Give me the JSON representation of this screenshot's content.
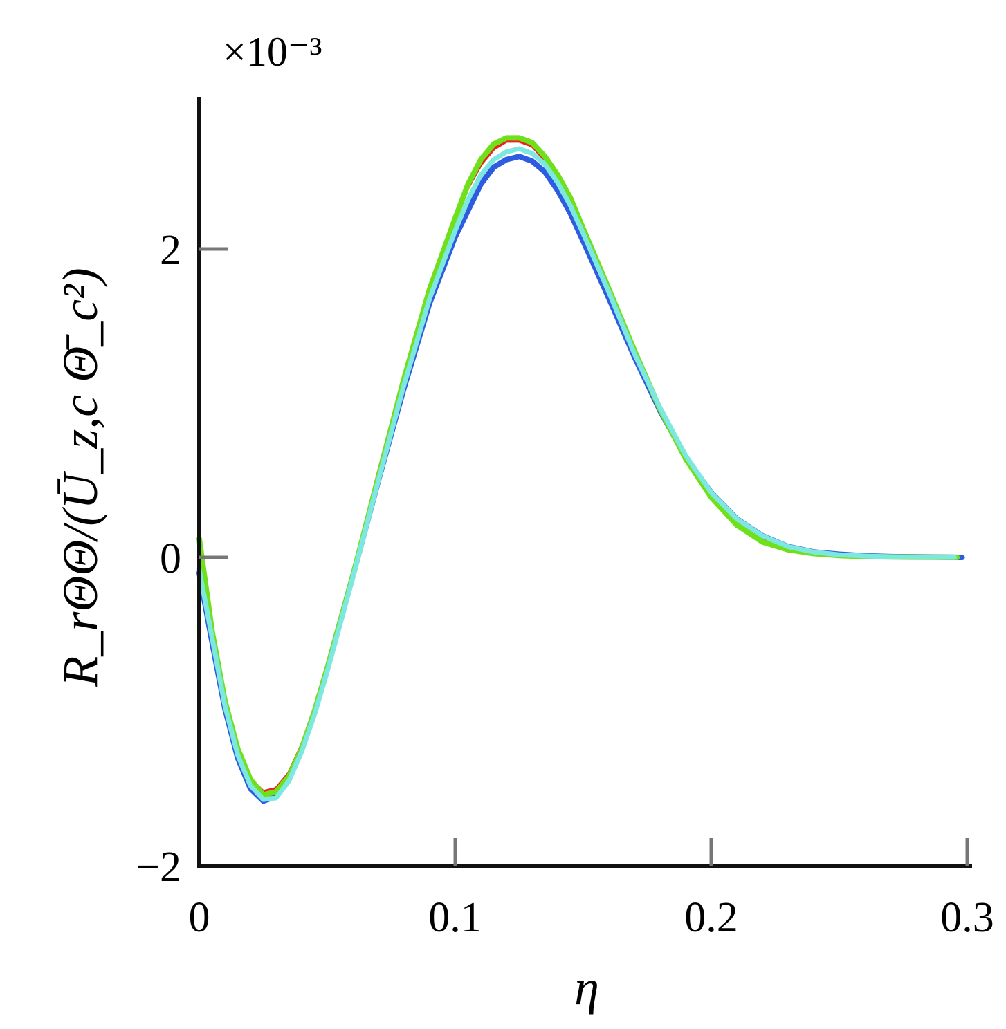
{
  "chart_data": {
    "type": "line",
    "title": "",
    "xlabel": "η",
    "ylabel": "R_rΘΘ/(Ū_z,c Θ̄_c²)",
    "y_multiplier": "×10⁻³",
    "xlim": [
      0,
      0.3
    ],
    "ylim": [
      -2,
      3
    ],
    "x_ticks": [
      0,
      0.1,
      0.2,
      0.3
    ],
    "x_tick_labels": [
      "0",
      "0.1",
      "0.2",
      "0.3"
    ],
    "y_ticks": [
      -2,
      0,
      2
    ],
    "y_tick_labels": [
      "−2",
      "0",
      "2"
    ],
    "grid": false,
    "legend": "none",
    "series": [
      {
        "color": "#2f5be0",
        "x": [
          0,
          0.005,
          0.01,
          0.015,
          0.02,
          0.025,
          0.03,
          0.035,
          0.04,
          0.045,
          0.05,
          0.06,
          0.07,
          0.08,
          0.09,
          0.1,
          0.105,
          0.11,
          0.115,
          0.12,
          0.125,
          0.13,
          0.135,
          0.14,
          0.145,
          0.15,
          0.16,
          0.17,
          0.18,
          0.19,
          0.2,
          0.21,
          0.22,
          0.23,
          0.24,
          0.25,
          0.26,
          0.27,
          0.28,
          0.29,
          0.298
        ],
        "y": [
          -0.1,
          -0.55,
          -0.98,
          -1.3,
          -1.5,
          -1.58,
          -1.55,
          -1.44,
          -1.25,
          -1.0,
          -0.72,
          -0.12,
          0.5,
          1.1,
          1.65,
          2.08,
          2.25,
          2.42,
          2.53,
          2.58,
          2.6,
          2.57,
          2.5,
          2.38,
          2.23,
          2.05,
          1.68,
          1.3,
          0.95,
          0.65,
          0.42,
          0.25,
          0.14,
          0.07,
          0.035,
          0.02,
          0.01,
          0.005,
          0.003,
          0.002,
          0.0
        ]
      },
      {
        "color": "#e8241b",
        "x": [
          0,
          0.005,
          0.01,
          0.015,
          0.02,
          0.025,
          0.03,
          0.035,
          0.04,
          0.045,
          0.05,
          0.06,
          0.07,
          0.08,
          0.09,
          0.1,
          0.105,
          0.11,
          0.115,
          0.12,
          0.125,
          0.13,
          0.135,
          0.14,
          0.145,
          0.15,
          0.16,
          0.17,
          0.18,
          0.19,
          0.2,
          0.21,
          0.22,
          0.23,
          0.24,
          0.25,
          0.26,
          0.27,
          0.28,
          0.29,
          0.296
        ],
        "y": [
          0.05,
          -0.5,
          -0.95,
          -1.25,
          -1.44,
          -1.52,
          -1.5,
          -1.4,
          -1.22,
          -0.98,
          -0.7,
          -0.1,
          0.55,
          1.18,
          1.75,
          2.2,
          2.4,
          2.55,
          2.65,
          2.7,
          2.7,
          2.67,
          2.58,
          2.45,
          2.3,
          2.1,
          1.72,
          1.32,
          0.95,
          0.64,
          0.4,
          0.23,
          0.12,
          0.06,
          0.03,
          0.015,
          0.008,
          0.004,
          0.002,
          0.001,
          0.0
        ]
      },
      {
        "color": "#6fe01a",
        "x": [
          0,
          0.005,
          0.01,
          0.015,
          0.02,
          0.025,
          0.03,
          0.035,
          0.04,
          0.045,
          0.05,
          0.06,
          0.07,
          0.08,
          0.09,
          0.1,
          0.105,
          0.11,
          0.115,
          0.12,
          0.125,
          0.13,
          0.135,
          0.14,
          0.145,
          0.15,
          0.16,
          0.17,
          0.18,
          0.19,
          0.2,
          0.21,
          0.22,
          0.23,
          0.24,
          0.25,
          0.26,
          0.27,
          0.28,
          0.29,
          0.296
        ],
        "y": [
          0.12,
          -0.48,
          -0.93,
          -1.24,
          -1.44,
          -1.54,
          -1.52,
          -1.42,
          -1.24,
          -1.0,
          -0.72,
          -0.12,
          0.52,
          1.16,
          1.74,
          2.2,
          2.42,
          2.58,
          2.68,
          2.72,
          2.72,
          2.69,
          2.6,
          2.48,
          2.33,
          2.13,
          1.74,
          1.34,
          0.96,
          0.64,
          0.39,
          0.21,
          0.1,
          0.05,
          0.025,
          0.012,
          0.006,
          0.003,
          0.002,
          0.001,
          0.0
        ]
      },
      {
        "color": "#7de8e0",
        "x": [
          0,
          0.005,
          0.01,
          0.015,
          0.02,
          0.025,
          0.03,
          0.035,
          0.04,
          0.045,
          0.05,
          0.06,
          0.07,
          0.08,
          0.09,
          0.1,
          0.105,
          0.11,
          0.115,
          0.12,
          0.125,
          0.13,
          0.135,
          0.14,
          0.145,
          0.15,
          0.16,
          0.17,
          0.18,
          0.19,
          0.2,
          0.21,
          0.22,
          0.23,
          0.24,
          0.25,
          0.26,
          0.27,
          0.28,
          0.29,
          0.295
        ],
        "y": [
          -0.08,
          -0.52,
          -0.96,
          -1.28,
          -1.48,
          -1.57,
          -1.56,
          -1.45,
          -1.26,
          -1.02,
          -0.74,
          -0.13,
          0.5,
          1.12,
          1.68,
          2.12,
          2.32,
          2.48,
          2.58,
          2.63,
          2.65,
          2.62,
          2.55,
          2.43,
          2.28,
          2.1,
          1.72,
          1.32,
          0.97,
          0.66,
          0.42,
          0.25,
          0.14,
          0.07,
          0.035,
          0.017,
          0.009,
          0.004,
          0.002,
          0.001,
          0.0
        ]
      }
    ]
  }
}
